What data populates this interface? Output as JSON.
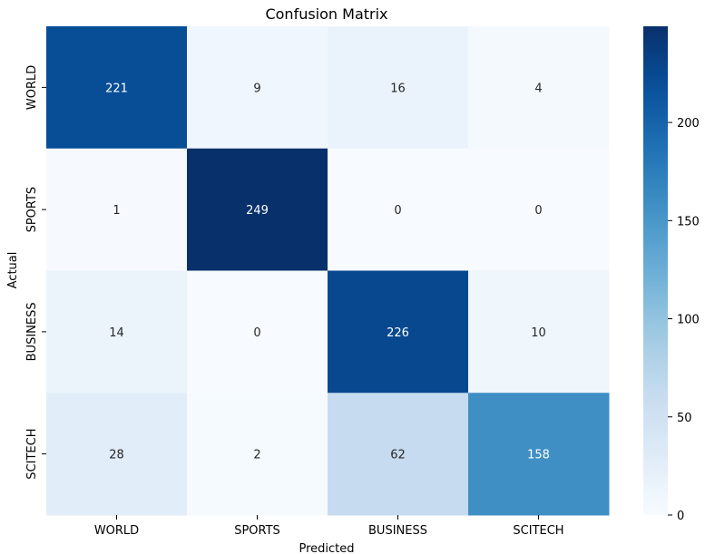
{
  "chart_data": {
    "type": "heatmap",
    "title": "Confusion Matrix",
    "xlabel": "Predicted",
    "ylabel": "Actual",
    "x_categories": [
      "WORLD",
      "SPORTS",
      "BUSINESS",
      "SCITECH"
    ],
    "y_categories": [
      "WORLD",
      "SPORTS",
      "BUSINESS",
      "SCITECH"
    ],
    "values": [
      [
        221,
        9,
        16,
        4
      ],
      [
        1,
        249,
        0,
        0
      ],
      [
        14,
        0,
        226,
        10
      ],
      [
        28,
        2,
        62,
        158
      ]
    ],
    "colormap": "Blues",
    "color_min": "#f7fbff",
    "color_max": "#08306b",
    "vmin": 0,
    "vmax": 249,
    "colorbar_ticks": [
      0,
      50,
      100,
      150,
      200
    ],
    "annotation_colors": {
      "dark": "#262626",
      "light": "#ffffff"
    }
  }
}
